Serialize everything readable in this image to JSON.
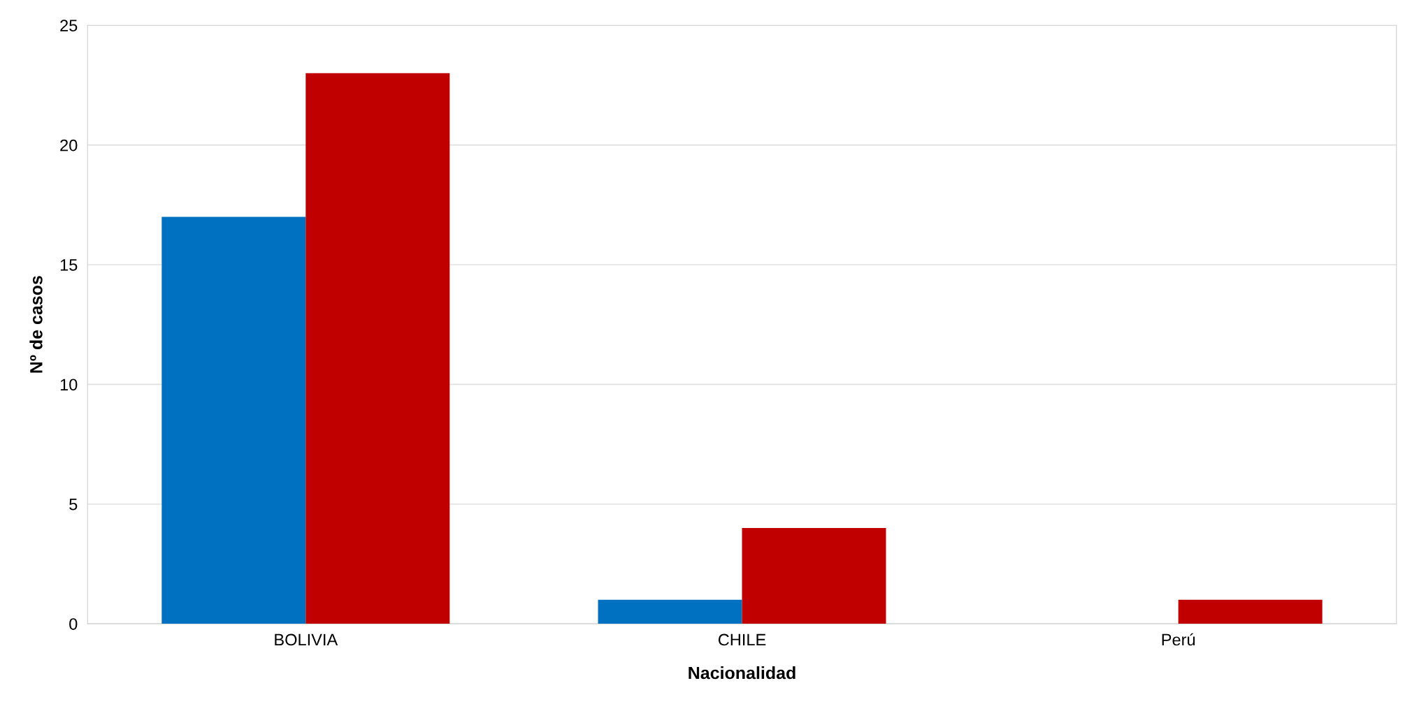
{
  "chart_data": {
    "type": "bar",
    "xlabel": "Nacionalidad",
    "ylabel": "Nº de casos",
    "categories": [
      "BOLIVIA",
      "CHILE",
      "Perú"
    ],
    "series": [
      {
        "color": "#0070c0",
        "values": [
          17,
          1,
          0
        ]
      },
      {
        "color": "#c00000",
        "values": [
          23,
          4,
          1
        ]
      }
    ],
    "ylim": [
      0,
      25
    ],
    "yticks": [
      0,
      5,
      10,
      15,
      20,
      25
    ],
    "grid": "y"
  }
}
